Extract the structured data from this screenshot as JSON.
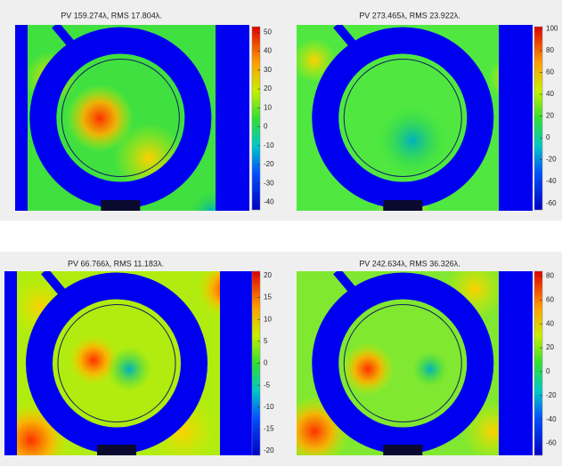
{
  "chart_data": [
    {
      "type": "image",
      "title": "PV 159.274λ, RMS 17.804λ.",
      "clim": [
        -44,
        53
      ],
      "cticks": [
        50,
        40,
        30,
        20,
        10,
        0,
        -10,
        -20,
        -30,
        -40
      ]
    },
    {
      "type": "image",
      "title": "PV 273.465λ, RMS 23.922λ.",
      "clim": [
        -66,
        102
      ],
      "cticks": [
        100,
        80,
        60,
        40,
        20,
        0,
        -20,
        -40,
        -60
      ]
    },
    {
      "type": "image",
      "title": "PV 66.766λ, RMS 11.183λ.",
      "clim": [
        -21,
        21
      ],
      "cticks": [
        20,
        15,
        10,
        5,
        0,
        -5,
        -10,
        -15,
        -20
      ]
    },
    {
      "type": "image",
      "title": "PV 242.634λ, RMS 36.326λ.",
      "clim": [
        -70,
        84
      ],
      "cticks": [
        80,
        60,
        40,
        20,
        0,
        -20,
        -40,
        -60
      ]
    }
  ]
}
